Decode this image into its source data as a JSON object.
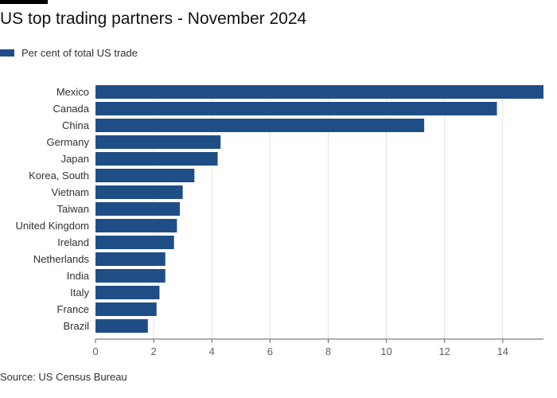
{
  "header": {
    "title": "US top trading partners - November 2024"
  },
  "legend": {
    "label": "Per cent of total US trade",
    "color": "#1f4e87"
  },
  "footer": {
    "source": "Source: US Census Bureau"
  },
  "chart_data": {
    "type": "bar",
    "orientation": "horizontal",
    "title": "US top trading partners - November 2024",
    "xlabel": "",
    "ylabel": "",
    "categories": [
      "Mexico",
      "Canada",
      "China",
      "Germany",
      "Japan",
      "Korea, South",
      "Vietnam",
      "Taiwan",
      "United Kingdom",
      "Ireland",
      "Netherlands",
      "India",
      "Italy",
      "France",
      "Brazil"
    ],
    "series": [
      {
        "name": "Per cent of total US trade",
        "values": [
          15.4,
          13.8,
          11.3,
          4.3,
          4.2,
          3.4,
          3.0,
          2.9,
          2.8,
          2.7,
          2.4,
          2.4,
          2.2,
          2.1,
          1.8
        ]
      }
    ],
    "xlim": [
      0,
      15.4
    ],
    "xticks": [
      0,
      2,
      4,
      6,
      8,
      10,
      12,
      14
    ],
    "grid": "vertical",
    "legend_position": "top-left",
    "bar_color": "#1f4e87",
    "grid_color": "#e6e3df",
    "axis_color": "#66605c"
  }
}
